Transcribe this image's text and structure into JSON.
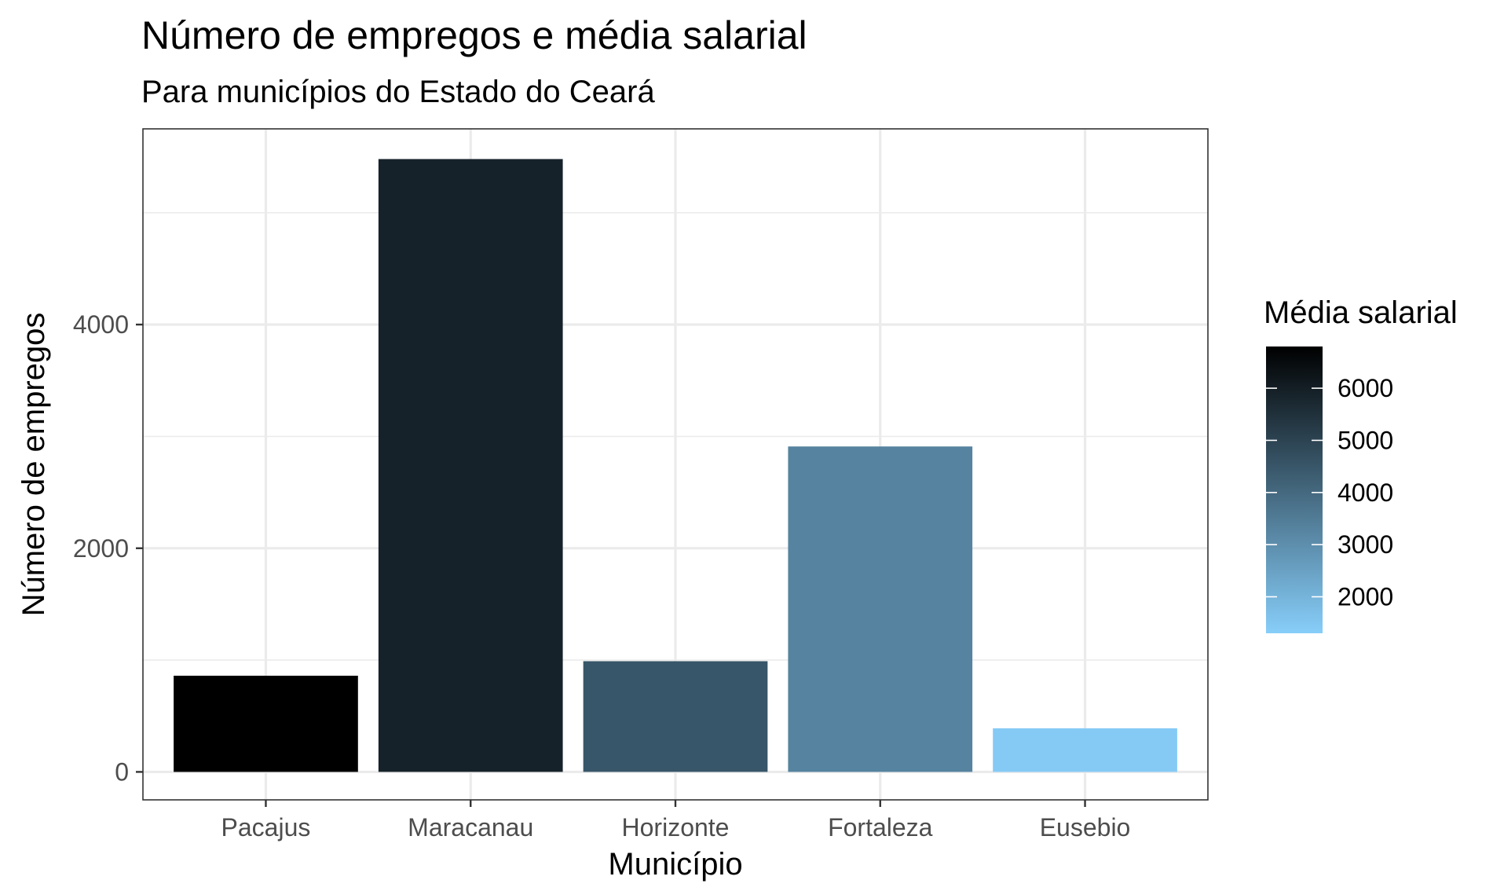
{
  "chart_data": {
    "type": "bar",
    "title": "Número de empregos e média salarial",
    "subtitle": "Para municípios do Estado do Ceará",
    "xlabel": "Município",
    "ylabel": "Número de empregos",
    "categories": [
      "Pacajus",
      "Maracanau",
      "Horizonte",
      "Fortaleza",
      "Eusebio"
    ],
    "values": [
      860,
      5480,
      990,
      2910,
      390
    ],
    "fill_values": [
      6900,
      5900,
      4500,
      3300,
      1400
    ],
    "ylim": [
      -250,
      5750
    ],
    "yticks": [
      0,
      2000,
      4000
    ],
    "grid": true,
    "legend": {
      "title": "Média salarial",
      "position": "right",
      "range": [
        1300,
        6800
      ],
      "ticks": [
        2000,
        3000,
        4000,
        5000,
        6000
      ],
      "color_low": "#87cefa",
      "color_high": "#000000"
    },
    "colors": {
      "bar_fill_range": [
        "#87cefa",
        "#000000"
      ],
      "panel_border": "#333333",
      "grid": "#ebebeb",
      "tick_text": "#4d4d4d"
    }
  }
}
